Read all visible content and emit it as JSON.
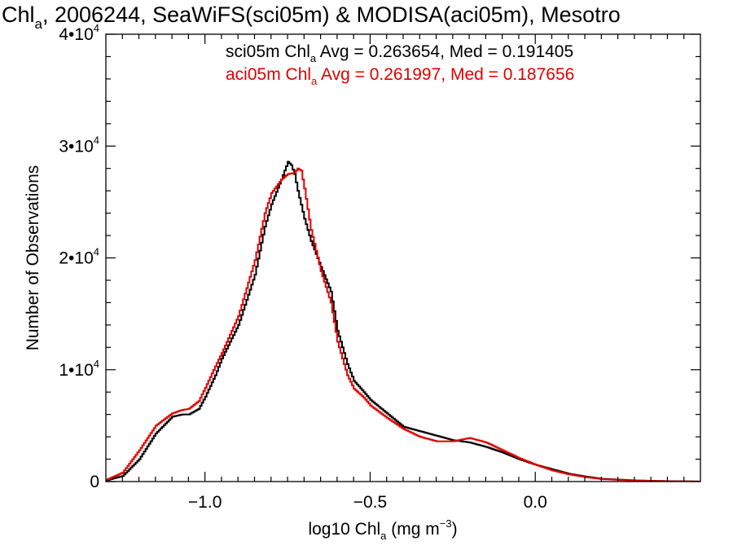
{
  "chart_data": {
    "type": "line",
    "title": {
      "parts": [
        {
          "text": "Chl",
          "sub": false
        },
        {
          "text": "a",
          "sub": true
        },
        {
          "text": ", 2006244, SeaWiFS(sci05m) & MODISA(aci05m), Mesotro",
          "sub": false
        }
      ]
    },
    "xlabel": {
      "parts": [
        {
          "text": "log10 Chl",
          "sub": false
        },
        {
          "text": "a",
          "sub": true
        },
        {
          "text": " (mg m",
          "sub": false
        },
        {
          "text": "−3",
          "sup": true
        },
        {
          "text": ")",
          "sub": false
        }
      ]
    },
    "ylabel": "Number of Observations",
    "xlim": [
      -1.3,
      0.5
    ],
    "ylim": [
      0,
      40000
    ],
    "xticks": [
      {
        "value": -1.0,
        "label": "−1.0"
      },
      {
        "value": -0.5,
        "label": "−0.5"
      },
      {
        "value": 0.0,
        "label": "0.0"
      }
    ],
    "yticks": [
      {
        "value": 0,
        "base": "0",
        "exp": ""
      },
      {
        "value": 10000,
        "base": "1•10",
        "exp": "4"
      },
      {
        "value": 20000,
        "base": "2•10",
        "exp": "4"
      },
      {
        "value": 30000,
        "base": "3•10",
        "exp": "4"
      },
      {
        "value": 40000,
        "base": "4•10",
        "exp": "4"
      }
    ],
    "grid": false,
    "legend": [
      {
        "series": "sci05m",
        "color": "#000000",
        "parts": [
          {
            "text": "sci05m Chl",
            "sub": false
          },
          {
            "text": "a",
            "sub": true
          },
          {
            "text": " Avg = 0.263654, Med = 0.191405",
            "sub": false
          }
        ]
      },
      {
        "series": "aci05m",
        "color": "#e00000",
        "parts": [
          {
            "text": "aci05m Chl",
            "sub": false
          },
          {
            "text": "a",
            "sub": true
          },
          {
            "text": " Avg = 0.261997, Med = 0.187656",
            "sub": false
          }
        ]
      }
    ],
    "series": [
      {
        "name": "sci05m",
        "color": "#000000",
        "x": [
          -1.3,
          -1.25,
          -1.2,
          -1.15,
          -1.1,
          -1.07,
          -1.05,
          -1.02,
          -1.0,
          -0.97,
          -0.95,
          -0.9,
          -0.85,
          -0.82,
          -0.8,
          -0.77,
          -0.75,
          -0.74,
          -0.73,
          -0.72,
          -0.7,
          -0.68,
          -0.65,
          -0.62,
          -0.6,
          -0.57,
          -0.55,
          -0.52,
          -0.5,
          -0.45,
          -0.4,
          -0.35,
          -0.3,
          -0.25,
          -0.2,
          -0.15,
          -0.1,
          -0.05,
          0.0,
          0.05,
          0.1,
          0.15,
          0.2,
          0.3,
          0.4,
          0.5
        ],
        "y": [
          100,
          500,
          2000,
          4300,
          5800,
          6000,
          6000,
          6500,
          7600,
          9500,
          11000,
          14000,
          18500,
          22800,
          24800,
          27000,
          28600,
          28300,
          27500,
          26000,
          23500,
          21500,
          19200,
          17000,
          13500,
          10500,
          9000,
          8000,
          7300,
          6100,
          4900,
          4500,
          4100,
          3700,
          3500,
          3100,
          2600,
          2000,
          1500,
          1100,
          700,
          450,
          250,
          100,
          40,
          0
        ]
      },
      {
        "name": "aci05m",
        "color": "#e00000",
        "x": [
          -1.3,
          -1.25,
          -1.2,
          -1.15,
          -1.1,
          -1.07,
          -1.05,
          -1.02,
          -1.0,
          -0.97,
          -0.95,
          -0.9,
          -0.85,
          -0.82,
          -0.8,
          -0.77,
          -0.75,
          -0.73,
          -0.72,
          -0.71,
          -0.7,
          -0.68,
          -0.65,
          -0.62,
          -0.6,
          -0.57,
          -0.55,
          -0.52,
          -0.5,
          -0.45,
          -0.4,
          -0.35,
          -0.3,
          -0.25,
          -0.2,
          -0.15,
          -0.1,
          -0.05,
          0.0,
          0.05,
          0.1,
          0.15,
          0.2,
          0.3,
          0.4,
          0.5
        ],
        "y": [
          150,
          800,
          2800,
          5000,
          6100,
          6400,
          6500,
          7200,
          8400,
          10300,
          11500,
          14800,
          19800,
          24000,
          25800,
          27000,
          27500,
          27600,
          28000,
          27800,
          26200,
          22500,
          18800,
          16000,
          12500,
          9500,
          8300,
          7500,
          6800,
          5700,
          4700,
          4000,
          3600,
          3600,
          3900,
          3500,
          2800,
          2100,
          1500,
          1000,
          650,
          400,
          220,
          90,
          30,
          0
        ]
      }
    ]
  }
}
